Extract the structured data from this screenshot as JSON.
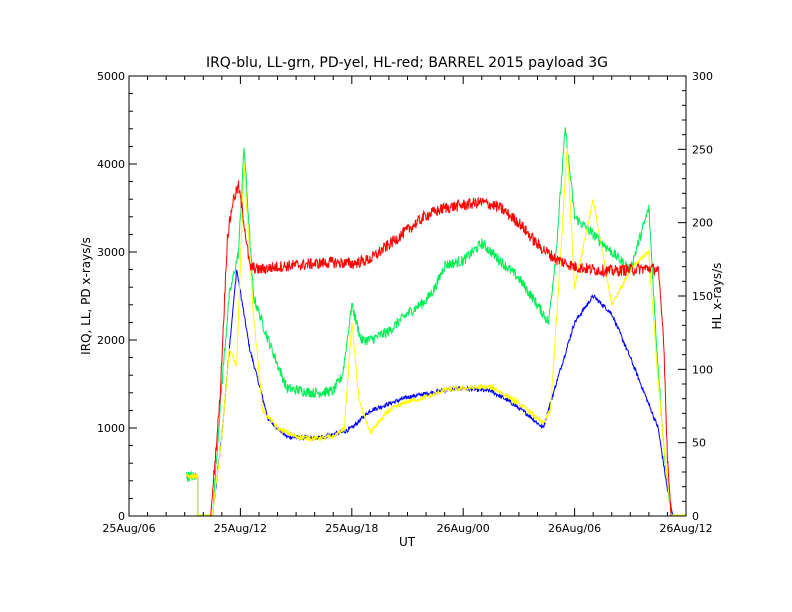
{
  "chart_data": {
    "type": "line",
    "title": "IRQ-blu, LL-grn, PD-yel, HL-red; BARREL 2015 payload 3G",
    "xlabel": "UT",
    "ylabel_left": "IRQ, LL, PD x-rays/s",
    "ylabel_right": "HL x-rays/s",
    "x_range_hours": [
      0,
      30
    ],
    "x_ticks": [
      {
        "hour": 0,
        "label": "25Aug/06"
      },
      {
        "hour": 6,
        "label": "25Aug/12"
      },
      {
        "hour": 12,
        "label": "25Aug/18"
      },
      {
        "hour": 18,
        "label": "26Aug/00"
      },
      {
        "hour": 24,
        "label": "26Aug/06"
      },
      {
        "hour": 30,
        "label": "26Aug/12"
      }
    ],
    "ylim_left": [
      0,
      5000
    ],
    "yticks_left": [
      "0",
      "1000",
      "2000",
      "3000",
      "4000",
      "5000"
    ],
    "ylim_right": [
      0,
      300
    ],
    "yticks_right": [
      "0",
      "50",
      "100",
      "150",
      "200",
      "250",
      "300"
    ],
    "grid": false,
    "series": [
      {
        "color": "#0000ff",
        "axis": "left",
        "noise": 25,
        "points": [
          [
            3.1,
            450
          ],
          [
            3.7,
            450
          ],
          [
            3.7,
            10
          ],
          [
            4.5,
            10
          ],
          [
            5.0,
            900
          ],
          [
            5.4,
            1900
          ],
          [
            5.8,
            2800
          ],
          [
            6.5,
            1900
          ],
          [
            7.5,
            1100
          ],
          [
            8.5,
            900
          ],
          [
            10.0,
            880
          ],
          [
            11.5,
            950
          ],
          [
            12.0,
            1000
          ],
          [
            13.0,
            1200
          ],
          [
            15.0,
            1350
          ],
          [
            17.0,
            1430
          ],
          [
            18.0,
            1450
          ],
          [
            19.5,
            1420
          ],
          [
            20.5,
            1300
          ],
          [
            21.5,
            1150
          ],
          [
            22.3,
            1000
          ],
          [
            23.0,
            1500
          ],
          [
            24.0,
            2200
          ],
          [
            25.0,
            2500
          ],
          [
            26.0,
            2300
          ],
          [
            27.0,
            1800
          ],
          [
            28.5,
            1000
          ],
          [
            29.0,
            300
          ],
          [
            29.3,
            10
          ],
          [
            30,
            10
          ]
        ]
      },
      {
        "color": "#00ee55",
        "axis": "left",
        "noise": 60,
        "points": [
          [
            3.1,
            450
          ],
          [
            3.7,
            450
          ],
          [
            3.7,
            10
          ],
          [
            4.5,
            10
          ],
          [
            5.0,
            1500
          ],
          [
            5.4,
            2500
          ],
          [
            5.9,
            3000
          ],
          [
            6.2,
            4200
          ],
          [
            6.7,
            2500
          ],
          [
            7.5,
            2000
          ],
          [
            8.5,
            1450
          ],
          [
            10.0,
            1400
          ],
          [
            11.0,
            1420
          ],
          [
            11.5,
            1600
          ],
          [
            12.0,
            2400
          ],
          [
            12.5,
            2000
          ],
          [
            13.0,
            2000
          ],
          [
            14.0,
            2100
          ],
          [
            15.0,
            2300
          ],
          [
            16.0,
            2450
          ],
          [
            16.5,
            2600
          ],
          [
            17.0,
            2850
          ],
          [
            18.0,
            2900
          ],
          [
            19.0,
            3100
          ],
          [
            20.0,
            2900
          ],
          [
            21.0,
            2700
          ],
          [
            22.0,
            2400
          ],
          [
            22.6,
            2200
          ],
          [
            23.0,
            3000
          ],
          [
            23.5,
            4400
          ],
          [
            24.0,
            3400
          ],
          [
            25.0,
            3200
          ],
          [
            26.0,
            3000
          ],
          [
            27.0,
            2800
          ],
          [
            28.0,
            3500
          ],
          [
            28.4,
            2000
          ],
          [
            28.8,
            800
          ],
          [
            29.2,
            10
          ],
          [
            30,
            10
          ]
        ]
      },
      {
        "color": "#ffff00",
        "axis": "left",
        "noise": 30,
        "points": [
          [
            3.1,
            450
          ],
          [
            3.7,
            450
          ],
          [
            3.7,
            10
          ],
          [
            4.5,
            10
          ],
          [
            5.0,
            900
          ],
          [
            5.4,
            1900
          ],
          [
            5.8,
            1700
          ],
          [
            6.2,
            4000
          ],
          [
            6.7,
            2300
          ],
          [
            7.2,
            1200
          ],
          [
            8.0,
            1000
          ],
          [
            9.0,
            900
          ],
          [
            10.0,
            880
          ],
          [
            11.0,
            900
          ],
          [
            11.6,
            1000
          ],
          [
            12.0,
            2200
          ],
          [
            12.4,
            1300
          ],
          [
            13.0,
            950
          ],
          [
            14.0,
            1200
          ],
          [
            15.0,
            1300
          ],
          [
            16.0,
            1350
          ],
          [
            17.0,
            1430
          ],
          [
            18.0,
            1450
          ],
          [
            19.5,
            1470
          ],
          [
            20.5,
            1350
          ],
          [
            21.5,
            1200
          ],
          [
            22.3,
            1050
          ],
          [
            22.7,
            1200
          ],
          [
            23.2,
            2800
          ],
          [
            23.6,
            4200
          ],
          [
            24.0,
            2600
          ],
          [
            25.0,
            3600
          ],
          [
            26.0,
            2400
          ],
          [
            27.0,
            2800
          ],
          [
            28.0,
            3000
          ],
          [
            28.4,
            1800
          ],
          [
            28.8,
            800
          ],
          [
            29.2,
            10
          ],
          [
            30,
            10
          ]
        ]
      },
      {
        "color": "#ff0000",
        "axis": "right",
        "noise": 4,
        "points": [
          [
            3.1,
            0
          ],
          [
            4.4,
            0
          ],
          [
            4.9,
            80
          ],
          [
            5.3,
            190
          ],
          [
            5.6,
            215
          ],
          [
            5.9,
            225
          ],
          [
            6.2,
            200
          ],
          [
            6.5,
            170
          ],
          [
            7.0,
            168
          ],
          [
            8.0,
            170
          ],
          [
            9.0,
            171
          ],
          [
            10.0,
            172
          ],
          [
            11.0,
            173
          ],
          [
            12.0,
            172
          ],
          [
            13.0,
            175
          ],
          [
            14.0,
            185
          ],
          [
            15.0,
            195
          ],
          [
            16.0,
            205
          ],
          [
            17.0,
            210
          ],
          [
            18.0,
            212
          ],
          [
            19.0,
            214
          ],
          [
            19.6,
            212
          ],
          [
            20.0,
            210
          ],
          [
            21.0,
            200
          ],
          [
            22.0,
            185
          ],
          [
            23.0,
            175
          ],
          [
            24.0,
            170
          ],
          [
            25.0,
            168
          ],
          [
            26.0,
            167
          ],
          [
            27.0,
            168
          ],
          [
            28.0,
            169
          ],
          [
            28.5,
            168
          ],
          [
            28.8,
            120
          ],
          [
            29.0,
            40
          ],
          [
            29.2,
            0
          ],
          [
            30,
            0
          ]
        ]
      }
    ]
  }
}
